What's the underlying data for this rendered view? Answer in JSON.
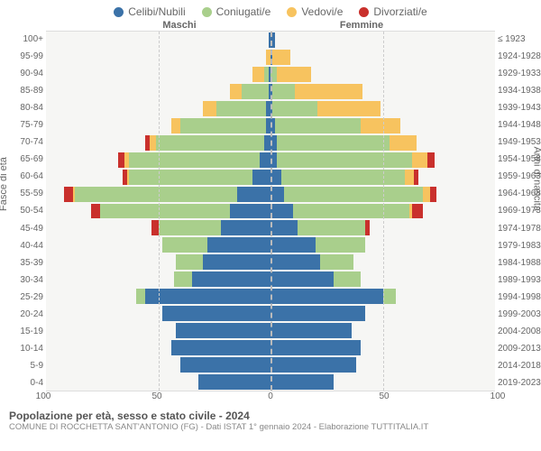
{
  "legend": [
    {
      "label": "Celibi/Nubili",
      "color": "#3b72a8"
    },
    {
      "label": "Coniugati/e",
      "color": "#a9cf8c"
    },
    {
      "label": "Vedovi/e",
      "color": "#f7c35f"
    },
    {
      "label": "Divorziati/e",
      "color": "#c9302c"
    }
  ],
  "header_left": "Maschi",
  "header_right": "Femmine",
  "ylabel_left": "Fasce di età",
  "ylabel_right": "Anni di nascita",
  "xmax": 100,
  "xticks": [
    100,
    50,
    0,
    50,
    100
  ],
  "age_labels": [
    "100+",
    "95-99",
    "90-94",
    "85-89",
    "80-84",
    "75-79",
    "70-74",
    "65-69",
    "60-64",
    "55-59",
    "50-54",
    "45-49",
    "40-44",
    "35-39",
    "30-34",
    "25-29",
    "20-24",
    "15-19",
    "10-14",
    "5-9",
    "0-4"
  ],
  "birth_labels": [
    "≤ 1923",
    "1924-1928",
    "1929-1933",
    "1934-1938",
    "1939-1943",
    "1944-1948",
    "1949-1953",
    "1954-1958",
    "1959-1963",
    "1964-1968",
    "1969-1973",
    "1974-1978",
    "1979-1983",
    "1984-1988",
    "1989-1993",
    "1994-1998",
    "1999-2003",
    "2004-2008",
    "2009-2013",
    "2014-2018",
    "2019-2023"
  ],
  "male": [
    {
      "cel": 1,
      "con": 0,
      "ved": 0,
      "div": 0
    },
    {
      "cel": 0,
      "con": 0,
      "ved": 2,
      "div": 0
    },
    {
      "cel": 1,
      "con": 2,
      "ved": 5,
      "div": 0
    },
    {
      "cel": 1,
      "con": 12,
      "ved": 5,
      "div": 0
    },
    {
      "cel": 2,
      "con": 22,
      "ved": 6,
      "div": 0
    },
    {
      "cel": 2,
      "con": 38,
      "ved": 4,
      "div": 0
    },
    {
      "cel": 3,
      "con": 48,
      "ved": 3,
      "div": 2
    },
    {
      "cel": 5,
      "con": 58,
      "ved": 2,
      "div": 3
    },
    {
      "cel": 8,
      "con": 55,
      "ved": 1,
      "div": 2
    },
    {
      "cel": 15,
      "con": 72,
      "ved": 1,
      "div": 4
    },
    {
      "cel": 18,
      "con": 58,
      "ved": 0,
      "div": 4
    },
    {
      "cel": 22,
      "con": 28,
      "ved": 0,
      "div": 3
    },
    {
      "cel": 28,
      "con": 20,
      "ved": 0,
      "div": 0
    },
    {
      "cel": 30,
      "con": 12,
      "ved": 0,
      "div": 0
    },
    {
      "cel": 35,
      "con": 8,
      "ved": 0,
      "div": 0
    },
    {
      "cel": 56,
      "con": 4,
      "ved": 0,
      "div": 0
    },
    {
      "cel": 48,
      "con": 0,
      "ved": 0,
      "div": 0
    },
    {
      "cel": 42,
      "con": 0,
      "ved": 0,
      "div": 0
    },
    {
      "cel": 44,
      "con": 0,
      "ved": 0,
      "div": 0
    },
    {
      "cel": 40,
      "con": 0,
      "ved": 0,
      "div": 0
    },
    {
      "cel": 32,
      "con": 0,
      "ved": 0,
      "div": 0
    }
  ],
  "female": [
    {
      "cel": 2,
      "con": 0,
      "ved": 0,
      "div": 0
    },
    {
      "cel": 1,
      "con": 0,
      "ved": 8,
      "div": 0
    },
    {
      "cel": 0,
      "con": 3,
      "ved": 15,
      "div": 0
    },
    {
      "cel": 1,
      "con": 10,
      "ved": 30,
      "div": 0
    },
    {
      "cel": 1,
      "con": 20,
      "ved": 28,
      "div": 0
    },
    {
      "cel": 2,
      "con": 38,
      "ved": 18,
      "div": 0
    },
    {
      "cel": 3,
      "con": 50,
      "ved": 12,
      "div": 0
    },
    {
      "cel": 3,
      "con": 60,
      "ved": 7,
      "div": 3
    },
    {
      "cel": 5,
      "con": 55,
      "ved": 4,
      "div": 2
    },
    {
      "cel": 6,
      "con": 62,
      "ved": 3,
      "div": 3
    },
    {
      "cel": 10,
      "con": 52,
      "ved": 1,
      "div": 5
    },
    {
      "cel": 12,
      "con": 30,
      "ved": 0,
      "div": 2
    },
    {
      "cel": 20,
      "con": 22,
      "ved": 0,
      "div": 0
    },
    {
      "cel": 22,
      "con": 15,
      "ved": 0,
      "div": 0
    },
    {
      "cel": 28,
      "con": 12,
      "ved": 0,
      "div": 0
    },
    {
      "cel": 50,
      "con": 6,
      "ved": 0,
      "div": 0
    },
    {
      "cel": 42,
      "con": 0,
      "ved": 0,
      "div": 0
    },
    {
      "cel": 36,
      "con": 0,
      "ved": 0,
      "div": 0
    },
    {
      "cel": 40,
      "con": 0,
      "ved": 0,
      "div": 0
    },
    {
      "cel": 38,
      "con": 0,
      "ved": 0,
      "div": 0
    },
    {
      "cel": 28,
      "con": 0,
      "ved": 0,
      "div": 0
    }
  ],
  "colors": {
    "cel": "#3b72a8",
    "con": "#a9cf8c",
    "ved": "#f7c35f",
    "div": "#c9302c"
  },
  "grid_positions_pct": [
    50
  ],
  "title": "Popolazione per età, sesso e stato civile - 2024",
  "subtitle": "COMUNE DI ROCCHETTA SANT'ANTONIO (FG) - Dati ISTAT 1° gennaio 2024 - Elaborazione TUTTITALIA.IT",
  "background_color": "#f6f6f4",
  "grid_color": "#cccccc"
}
